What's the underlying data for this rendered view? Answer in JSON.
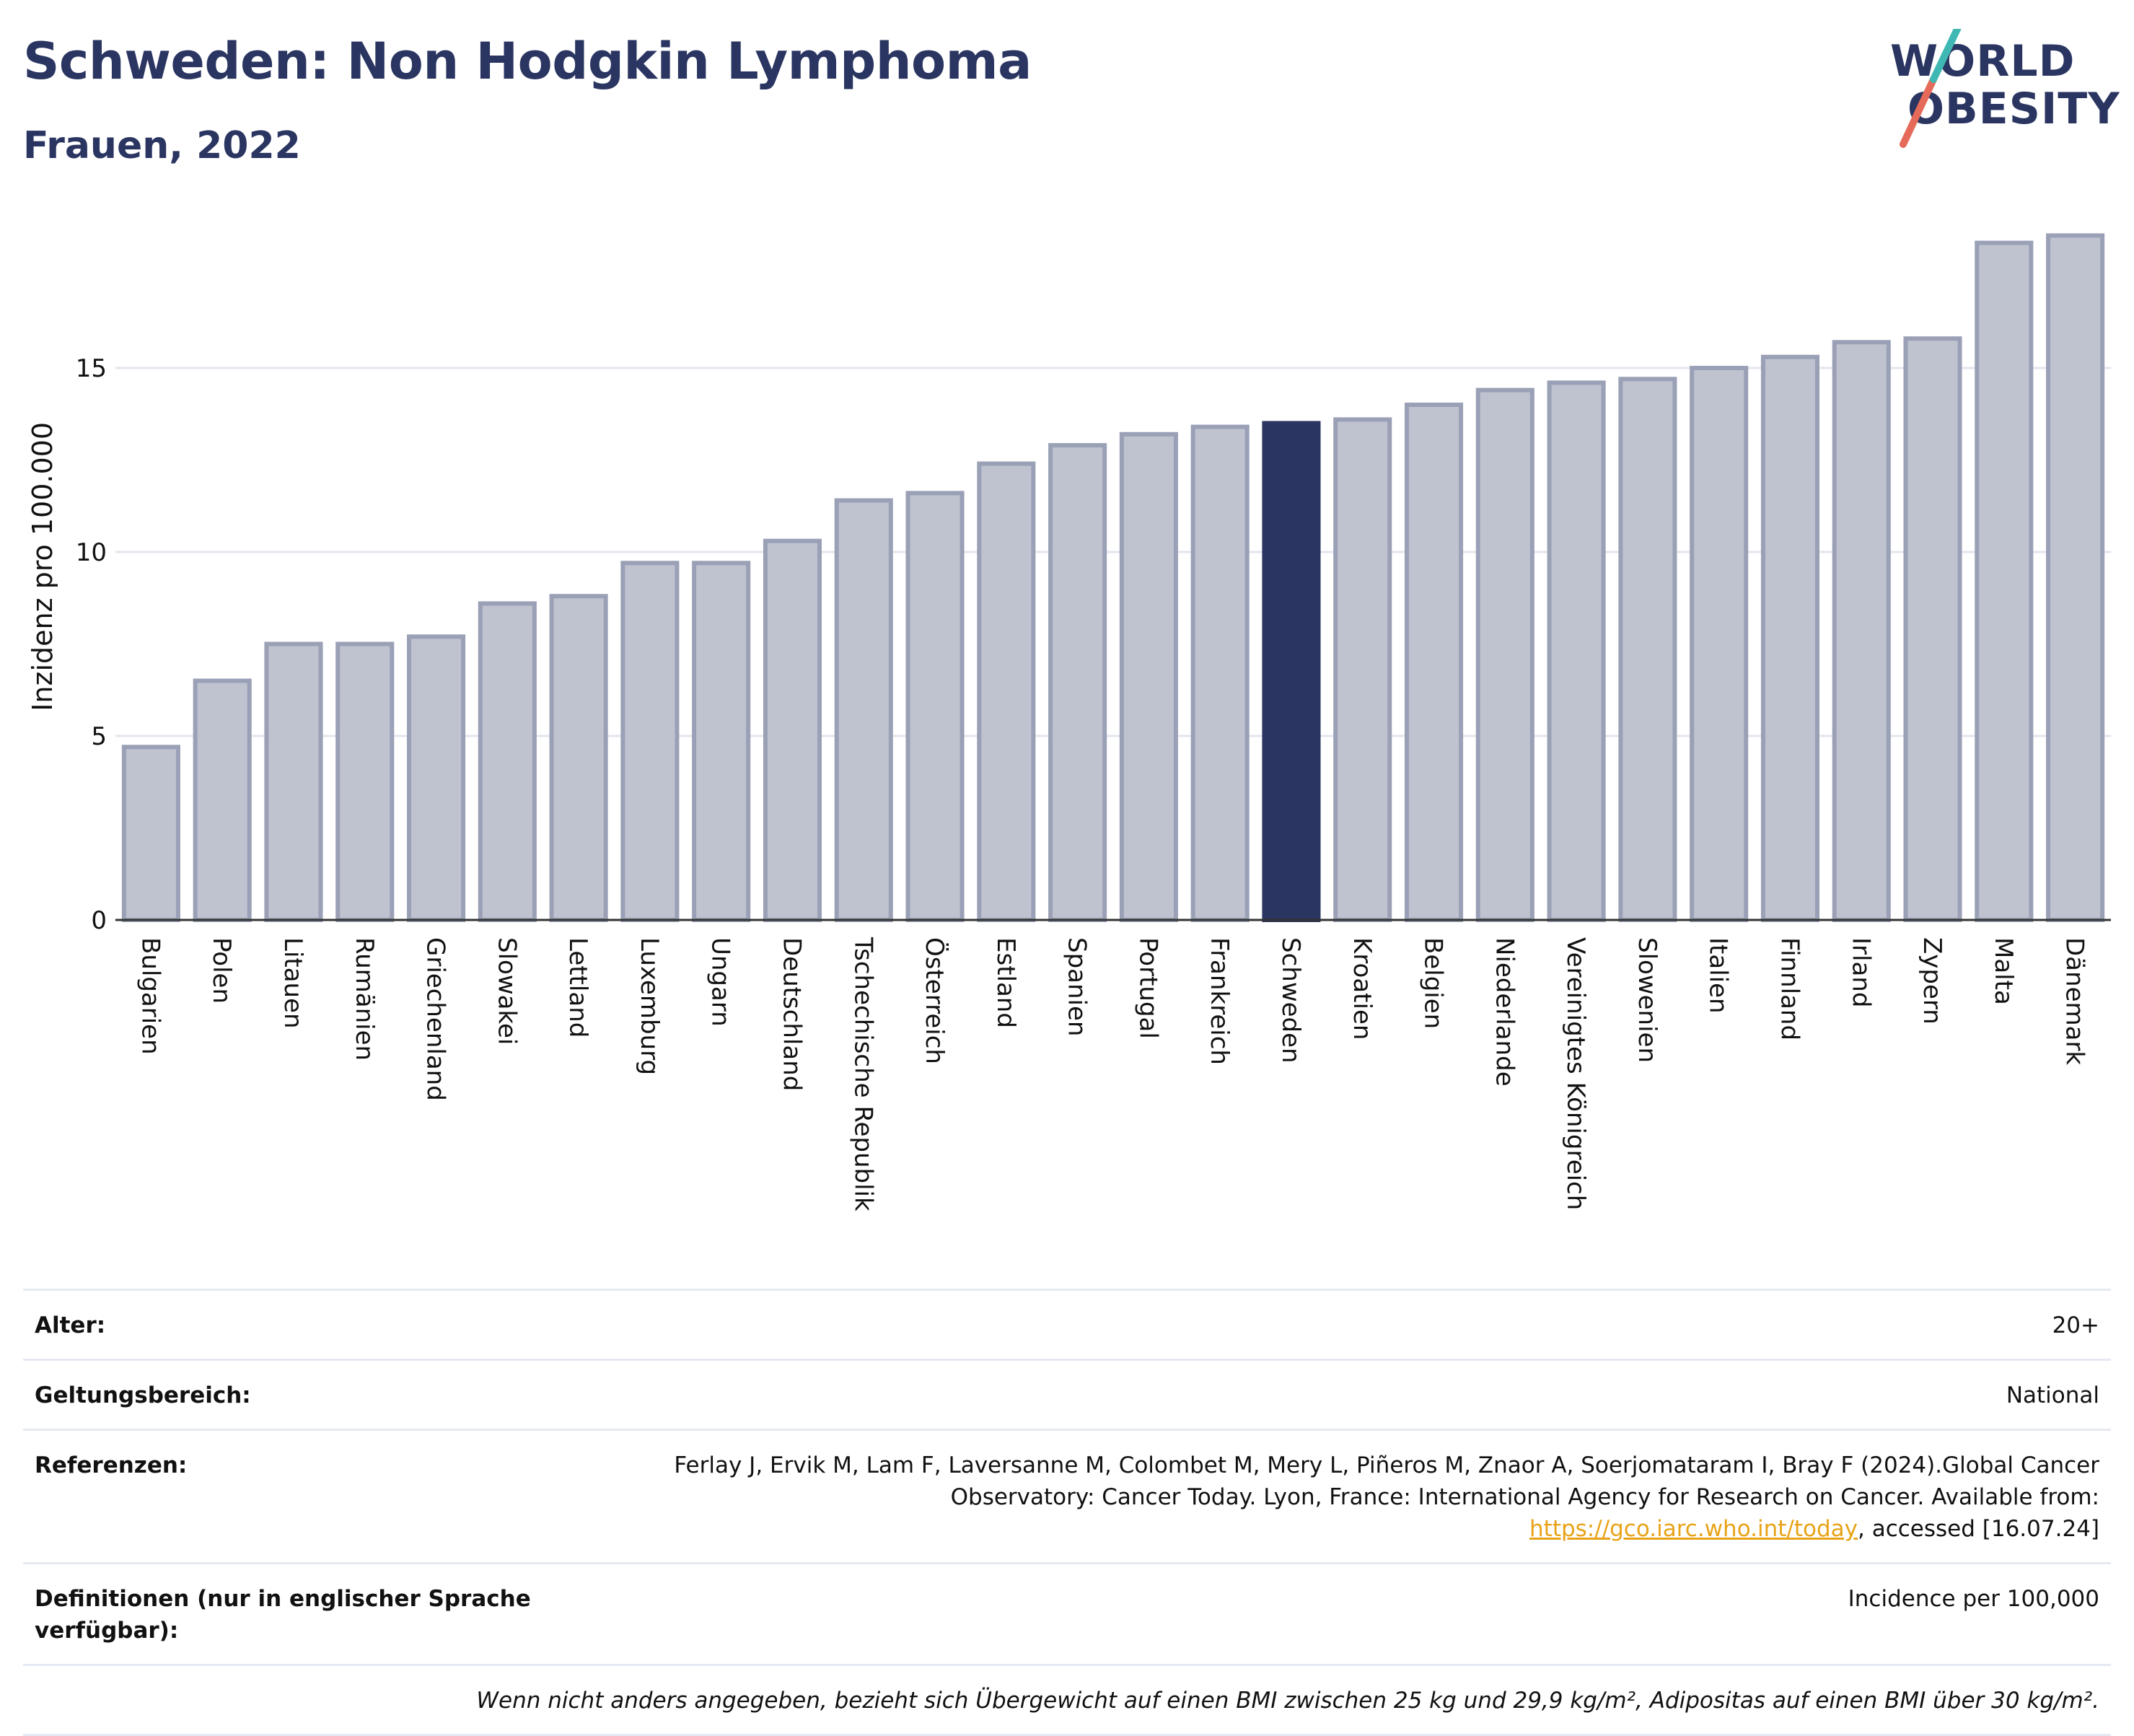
{
  "title": "Schweden: Non Hodgkin Lymphoma",
  "subtitle": "Frauen, 2022",
  "logo": {
    "line1": "WORLD",
    "line2": "OBESITY"
  },
  "colors": {
    "bar": "#bfc3d0",
    "bar_border": "#9aa0b6",
    "highlight": "#2a3561",
    "grid": "#e3e6ee",
    "accent": "#e8a317"
  },
  "chart_data": {
    "type": "bar",
    "title": "Schweden: Non Hodgkin Lymphoma",
    "subtitle": "Frauen, 2022",
    "ylabel": "Inzidenz pro 100.000",
    "xlabel": "",
    "ylim": [
      0,
      19.5
    ],
    "yticks": [
      0,
      5,
      10,
      15
    ],
    "grid": true,
    "highlight": "Schweden",
    "categories": [
      "Bulgarien",
      "Polen",
      "Litauen",
      "Rumänien",
      "Griechenland",
      "Slowakei",
      "Lettland",
      "Luxemburg",
      "Ungarn",
      "Deutschland",
      "Tschechische Republik",
      "Österreich",
      "Estland",
      "Spanien",
      "Portugal",
      "Frankreich",
      "Schweden",
      "Kroatien",
      "Belgien",
      "Niederlande",
      "Vereinigtes Königreich",
      "Slowenien",
      "Italien",
      "Finnland",
      "Irland",
      "Zypern",
      "Malta",
      "Dänemark"
    ],
    "values": [
      4.7,
      6.5,
      7.5,
      7.5,
      7.7,
      8.6,
      8.8,
      9.7,
      9.7,
      10.3,
      11.4,
      11.6,
      12.4,
      12.9,
      13.2,
      13.4,
      13.5,
      13.6,
      14.0,
      14.4,
      14.6,
      14.7,
      15.0,
      15.3,
      15.7,
      15.8,
      18.4,
      18.6
    ]
  },
  "info": {
    "age_label": "Alter:",
    "age_value": "20+",
    "scope_label": "Geltungsbereich:",
    "scope_value": "National",
    "refs_label": "Referenzen:",
    "refs_text": "Ferlay J, Ervik M, Lam F, Laversanne M, Colombet M, Mery L, Piñeros M, Znaor A, Soerjomataram I, Bray F (2024).Global Cancer Observatory: Cancer Today. Lyon, France: International Agency for Research on Cancer. Available from: ",
    "refs_link": "https://gco.iarc.who.int/today",
    "refs_tail": ", accessed [16.07.24]",
    "defs_label": "Definitionen (nur in englischer Sprache verfügbar):",
    "defs_value": "Incidence per 100,000",
    "note": "Wenn nicht anders angegeben, bezieht sich Übergewicht auf einen BMI zwischen 25 kg und 29,9 kg/m², Adipositas auf einen BMI über 30 kg/m²."
  }
}
